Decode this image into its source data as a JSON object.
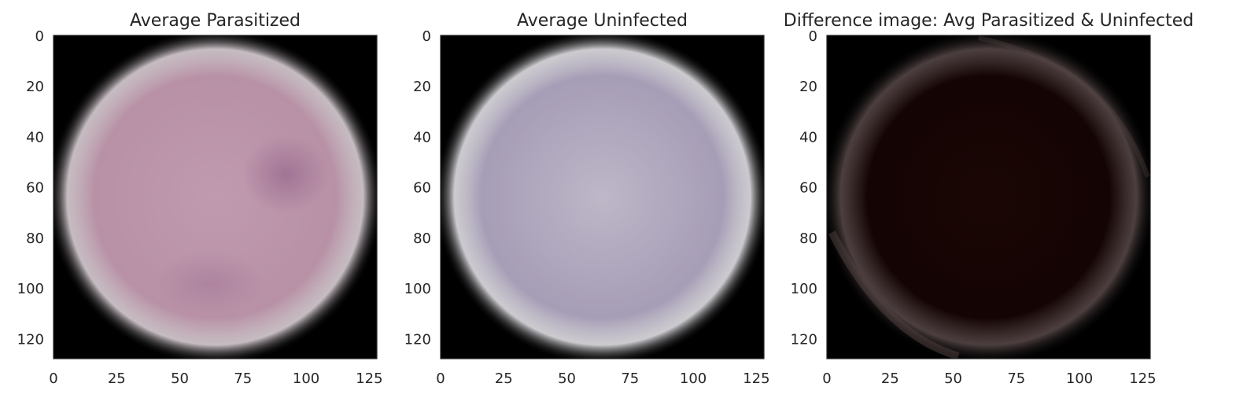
{
  "chart_data": [
    {
      "type": "image",
      "title": "Average Parasitized",
      "xlabel": "",
      "ylabel": "",
      "xlim": [
        0,
        128
      ],
      "ylim": [
        128,
        0
      ],
      "xticks": [
        0,
        25,
        50,
        75,
        100,
        125
      ],
      "yticks": [
        0,
        20,
        40,
        60,
        80,
        100,
        120
      ],
      "grid": false,
      "colors": {
        "background": "#000000",
        "cell": "#b891a6",
        "cell_center": "#c09aaf",
        "stain": "#9e7093",
        "rim": "#e8dde3"
      }
    },
    {
      "type": "image",
      "title": "Average Uninfected",
      "xlabel": "",
      "ylabel": "",
      "xlim": [
        0,
        128
      ],
      "ylim": [
        128,
        0
      ],
      "xticks": [
        0,
        25,
        50,
        75,
        100,
        125
      ],
      "yticks": [
        0,
        20,
        40,
        60,
        80,
        100,
        120
      ],
      "grid": false,
      "colors": {
        "background": "#000000",
        "cell": "#a69db6",
        "cell_center": "#bdb7c8",
        "stain": "#9a90ad",
        "rim": "#f0eef3"
      }
    },
    {
      "type": "image",
      "title": "Difference image: Avg Parasitized & Uninfected",
      "xlabel": "",
      "ylabel": "",
      "xlim": [
        0,
        128
      ],
      "ylim": [
        128,
        0
      ],
      "xticks": [
        0,
        25,
        50,
        75,
        100,
        125
      ],
      "yticks": [
        0,
        20,
        40,
        60,
        80,
        100,
        120
      ],
      "grid": false,
      "colors": {
        "background": "#000000",
        "cell": "#140404",
        "cell_center": "#1a0605",
        "stain": "#2a0c0a",
        "rim": "#5a4a4a"
      }
    }
  ]
}
